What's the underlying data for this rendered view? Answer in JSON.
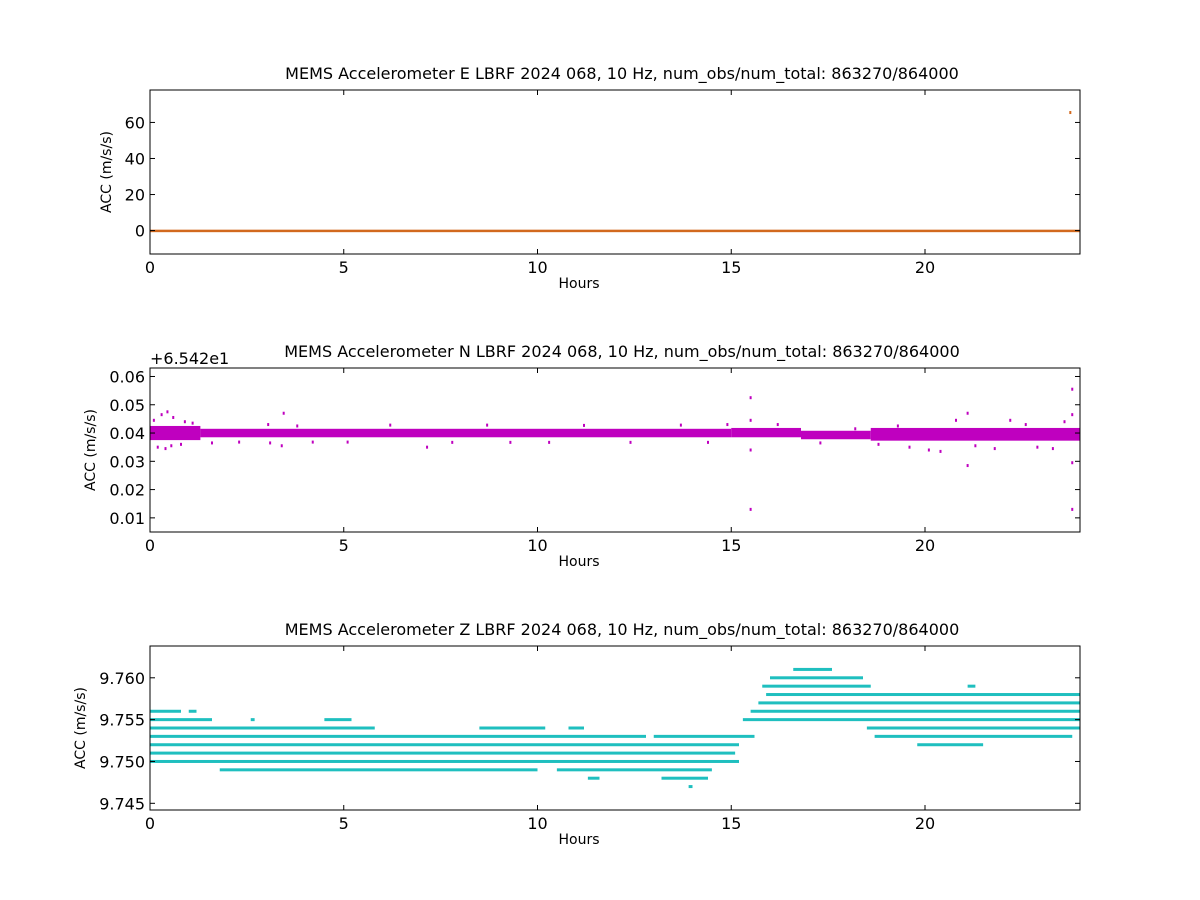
{
  "chart_data": [
    {
      "type": "scatter",
      "title": "MEMS Accelerometer E LBRF 2024 068, 10 Hz, num_obs/num_total: 863270/864000",
      "xlabel": "Hours",
      "ylabel": "ACC (m/s/s)",
      "xlim": [
        0,
        24
      ],
      "ylim": [
        -13,
        78
      ],
      "xticks": [
        0,
        5,
        10,
        15,
        20
      ],
      "yticks": [
        0,
        20,
        40,
        60
      ],
      "offset_text": "",
      "color": "#d2691e",
      "series": [
        {
          "kind": "band",
          "segments": [
            {
              "x": [
                0,
                24
              ],
              "lo": -0.5,
              "hi": 0.5
            }
          ]
        },
        {
          "kind": "points",
          "points": [
            [
              23.75,
              65.5
            ]
          ]
        }
      ]
    },
    {
      "type": "scatter",
      "title": "MEMS Accelerometer N LBRF 2024 068, 10 Hz, num_obs/num_total: 863270/864000",
      "xlabel": "Hours",
      "ylabel": "ACC (m/s/s)",
      "xlim": [
        0,
        24
      ],
      "ylim": [
        0.005,
        0.063
      ],
      "xticks": [
        0,
        5,
        10,
        15,
        20
      ],
      "yticks": [
        0.01,
        0.02,
        0.03,
        0.04,
        0.05,
        0.06
      ],
      "offset_text": "+6.542e1",
      "color": "#bf00bf",
      "series": [
        {
          "kind": "band",
          "segments": [
            {
              "x": [
                0,
                1.3
              ],
              "lo": 0.0375,
              "hi": 0.0425
            },
            {
              "x": [
                1.3,
                15.0
              ],
              "lo": 0.0385,
              "hi": 0.0415
            },
            {
              "x": [
                15.0,
                16.8
              ],
              "lo": 0.0385,
              "hi": 0.0418
            },
            {
              "x": [
                16.8,
                18.6
              ],
              "lo": 0.0378,
              "hi": 0.0408
            },
            {
              "x": [
                18.6,
                24
              ],
              "lo": 0.0373,
              "hi": 0.0418
            }
          ]
        },
        {
          "kind": "points",
          "points": [
            [
              0.1,
              0.0445
            ],
            [
              0.3,
              0.0465
            ],
            [
              0.45,
              0.0475
            ],
            [
              0.6,
              0.0455
            ],
            [
              0.2,
              0.035
            ],
            [
              0.4,
              0.0345
            ],
            [
              0.55,
              0.0355
            ],
            [
              0.9,
              0.044
            ],
            [
              1.1,
              0.0435
            ],
            [
              0.8,
              0.036
            ],
            [
              1.6,
              0.0365
            ],
            [
              2.3,
              0.0368
            ],
            [
              3.05,
              0.043
            ],
            [
              3.1,
              0.0365
            ],
            [
              3.45,
              0.047
            ],
            [
              3.4,
              0.0355
            ],
            [
              3.8,
              0.0425
            ],
            [
              4.2,
              0.0368
            ],
            [
              5.1,
              0.0368
            ],
            [
              6.2,
              0.0428
            ],
            [
              7.15,
              0.035
            ],
            [
              7.8,
              0.0367
            ],
            [
              8.7,
              0.0428
            ],
            [
              9.3,
              0.0367
            ],
            [
              10.3,
              0.0367
            ],
            [
              11.2,
              0.0427
            ],
            [
              12.4,
              0.0367
            ],
            [
              13.7,
              0.0428
            ],
            [
              14.4,
              0.0367
            ],
            [
              14.9,
              0.043
            ],
            [
              15.5,
              0.0525
            ],
            [
              15.5,
              0.0445
            ],
            [
              15.5,
              0.034
            ],
            [
              15.5,
              0.013
            ],
            [
              16.2,
              0.043
            ],
            [
              17.3,
              0.0365
            ],
            [
              18.2,
              0.0415
            ],
            [
              18.8,
              0.036
            ],
            [
              19.3,
              0.0425
            ],
            [
              19.6,
              0.035
            ],
            [
              20.1,
              0.034
            ],
            [
              20.4,
              0.0335
            ],
            [
              20.8,
              0.0445
            ],
            [
              21.1,
              0.047
            ],
            [
              21.1,
              0.0285
            ],
            [
              21.3,
              0.0355
            ],
            [
              21.8,
              0.0345
            ],
            [
              22.2,
              0.0445
            ],
            [
              22.6,
              0.043
            ],
            [
              22.9,
              0.035
            ],
            [
              23.3,
              0.0345
            ],
            [
              23.6,
              0.044
            ],
            [
              23.8,
              0.0555
            ],
            [
              23.8,
              0.0465
            ],
            [
              23.8,
              0.0295
            ],
            [
              23.8,
              0.013
            ]
          ]
        }
      ]
    },
    {
      "type": "scatter",
      "title": "MEMS Accelerometer Z LBRF 2024 068, 10 Hz, num_obs/num_total: 863270/864000",
      "xlabel": "Hours",
      "ylabel": "ACC (m/s/s)",
      "xlim": [
        0,
        24
      ],
      "ylim": [
        9.7442,
        9.7638
      ],
      "xticks": [
        0,
        5,
        10,
        15,
        20
      ],
      "yticks": [
        9.745,
        9.75,
        9.755,
        9.76
      ],
      "offset_text": "",
      "color": "#1fbfbf",
      "series": [
        {
          "kind": "levels",
          "levels": [
            {
              "y": 9.756,
              "segments": [
                [
                  0.0,
                  0.8
                ],
                [
                  1.0,
                  1.2
                ]
              ]
            },
            {
              "y": 9.755,
              "segments": [
                [
                  0.0,
                  1.6
                ],
                [
                  2.6,
                  2.7
                ],
                [
                  4.5,
                  5.2
                ]
              ]
            },
            {
              "y": 9.754,
              "segments": [
                [
                  0.0,
                  5.8
                ],
                [
                  8.5,
                  10.2
                ],
                [
                  10.8,
                  11.2
                ]
              ]
            },
            {
              "y": 9.753,
              "segments": [
                [
                  0.0,
                  12.8
                ],
                [
                  13.0,
                  15.6
                ]
              ]
            },
            {
              "y": 9.752,
              "segments": [
                [
                  0.0,
                  15.2
                ]
              ]
            },
            {
              "y": 9.751,
              "segments": [
                [
                  0.0,
                  15.1
                ]
              ]
            },
            {
              "y": 9.75,
              "segments": [
                [
                  0.0,
                  15.2
                ]
              ]
            },
            {
              "y": 9.749,
              "segments": [
                [
                  1.8,
                  10.0
                ],
                [
                  10.5,
                  14.5
                ]
              ]
            },
            {
              "y": 9.748,
              "segments": [
                [
                  11.3,
                  11.6
                ],
                [
                  13.2,
                  14.4
                ]
              ]
            },
            {
              "y": 9.747,
              "segments": [
                [
                  13.9,
                  14.0
                ]
              ]
            },
            {
              "y": 9.761,
              "segments": [
                [
                  16.6,
                  17.6
                ]
              ]
            },
            {
              "y": 9.76,
              "segments": [
                [
                  16.0,
                  18.4
                ]
              ]
            },
            {
              "y": 9.759,
              "segments": [
                [
                  15.8,
                  18.6
                ],
                [
                  21.1,
                  21.3
                ]
              ]
            },
            {
              "y": 9.758,
              "segments": [
                [
                  15.9,
                  24.0
                ]
              ]
            },
            {
              "y": 9.757,
              "segments": [
                [
                  15.7,
                  24.0
                ]
              ]
            },
            {
              "y": 9.756,
              "segments": [
                [
                  15.5,
                  24.0
                ]
              ]
            },
            {
              "y": 9.755,
              "segments": [
                [
                  15.3,
                  24.0
                ]
              ]
            },
            {
              "y": 9.754,
              "segments": [
                [
                  18.5,
                  24.0
                ]
              ]
            },
            {
              "y": 9.753,
              "segments": [
                [
                  18.7,
                  23.8
                ]
              ]
            },
            {
              "y": 9.752,
              "segments": [
                [
                  19.8,
                  21.5
                ]
              ]
            }
          ]
        }
      ]
    }
  ]
}
